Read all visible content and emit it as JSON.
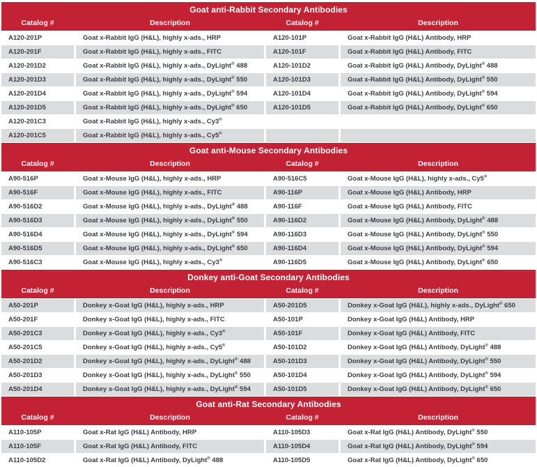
{
  "colors": {
    "header_red": "#C32235",
    "stripe_gray": "#DBDCDD",
    "cell_text": "#3D3E44",
    "header_text": "#FFFFFF"
  },
  "columns": [
    "Catalog #",
    "Description",
    "Catalog #",
    "Description"
  ],
  "sections": [
    {
      "title": "Goat anti-Rabbit Secondary Antibodies",
      "stripe_start": "white",
      "rows": [
        [
          "A120-201P",
          "Goat x-Rabbit IgG (H&L), highly x-ads., HRP",
          "A120-101P",
          "Goat x-Rabbit IgG (H&L) Antibody, HRP"
        ],
        [
          "A120-201F",
          "Goat x-Rabbit IgG (H&L), highly x-ads., FITC",
          "A120-101F",
          "Goat x-Rabbit IgG (H&L) Antibody, FITC"
        ],
        [
          "A120-201D2",
          "Goat x-Rabbit IgG (H&L), highly x-ads., DyLight® 488",
          "A120-101D2",
          "Goat x-Rabbit IgG (H&L) Antibody, DyLight® 488"
        ],
        [
          "A120-201D3",
          "Goat x-Rabbit IgG (H&L), highly x-ads., DyLight® 550",
          "A120-101D3",
          "Goat x-Rabbit IgG (H&L) Antibody, DyLight® 550"
        ],
        [
          "A120-201D4",
          "Goat x-Rabbit IgG (H&L), highly x-ads., DyLight® 594",
          "A120-101D4",
          "Goat x-Rabbit IgG (H&L) Antibody, DyLight® 594"
        ],
        [
          "A120-201D5",
          "Goat x-Rabbit IgG (H&L), highly x-ads., DyLight® 650",
          "A120-101D5",
          "Goat x-Rabbit IgG (H&L) Antibody, DyLight® 650"
        ],
        [
          "A120-201C3",
          "Goat x-Rabbit IgG (H&L), highly x-ads., Cy3®",
          "",
          ""
        ],
        [
          "A120-201C5",
          "Goat x-Rabbit IgG (H&L), highly x-ads., Cy5®",
          "",
          ""
        ]
      ]
    },
    {
      "title": "Goat anti-Mouse Secondary Antibodies",
      "stripe_start": "white",
      "rows": [
        [
          "A90-516P",
          "Goat x-Mouse IgG (H&L), highly x-ads., HRP",
          "A90-516C5",
          "Goat x-Mouse IgG (H&L), highly x-ads., Cy5®"
        ],
        [
          "A90-516F",
          "Goat x-Mouse IgG (H&L), highly x-ads., FITC",
          "A90-116P",
          "Goat x-Mouse IgG (H&L) Antibody, HRP"
        ],
        [
          "A90-516D2",
          "Goat x-Mouse IgG (H&L), highly x-ads., DyLight® 488",
          "A90-116F",
          "Goat x-Mouse IgG (H&L) Antibody, FITC"
        ],
        [
          "A90-516D3",
          "Goat x-Mouse IgG (H&L), highly x-ads., DyLight® 550",
          "A90-116D2",
          "Goat x-Mouse IgG (H&L) Antibody, DyLight® 488"
        ],
        [
          "A90-516D4",
          "Goat x-Mouse IgG (H&L), highly x-ads., DyLight® 594",
          "A90-116D3",
          "Goat x-Mouse IgG (H&L) Antibody, DyLight® 550"
        ],
        [
          "A90-516D5",
          "Goat x-Mouse IgG (H&L), highly x-ads., DyLight® 650",
          "A90-116D4",
          "Goat x-Mouse IgG (H&L) Antibody, DyLight® 594"
        ],
        [
          "A90-516C3",
          "Goat x-Mouse IgG (H&L), highly x-ads., Cy3®",
          "A90-116D5",
          "Goat x-Mouse IgG (H&L) Antibody, DyLight® 650"
        ]
      ]
    },
    {
      "title": "Donkey anti-Goat Secondary Antibodies",
      "stripe_start": "gray",
      "rows": [
        [
          "A50-201P",
          "Donkey x-Goat IgG (H&L), highly x-ads., HRP",
          "A50-201D5",
          "Donkey x-Goat IgG (H&L), highly x-ads., DyLight® 650"
        ],
        [
          "A50-201F",
          "Donkey x-Goat IgG (H&L), highly x-ads., FITC",
          "A50-101P",
          "Donkey x-Goat IgG (H&L) Antibody, HRP"
        ],
        [
          "A50-201C3",
          "Donkey x-Goat IgG (H&L), highly x-ads., Cy3®",
          "A50-101F",
          "Donkey x-Goat IgG (H&L) Antibody, FITC"
        ],
        [
          "A50-201C5",
          "Donkey x-Goat IgG (H&L), highly x-ads., Cy5®",
          "A50-101D2",
          "Donkey x-Goat IgG (H&L) Antibody, DyLight® 488"
        ],
        [
          "A50-201D2",
          "Donkey x-Goat IgG (H&L), highly x-ads., DyLight® 488",
          "A50-101D3",
          "Donkey x-Goat IgG (H&L) Antibody, DyLight® 550"
        ],
        [
          "A50-201D3",
          "Donkey x-Goat IgG (H&L), highly x-ads., DyLight® 550",
          "A50-101D4",
          "Donkey x-Goat IgG (H&L) Antibody, DyLight® 594"
        ],
        [
          "A50-201D4",
          "Donkey x-Goat IgG (H&L), highly x-ads., DyLight® 594",
          "A50-101D5",
          "Donkey x-Goat IgG (H&L) Antibody, DyLight® 650"
        ]
      ]
    },
    {
      "title": "Goat anti-Rat Secondary Antibodies",
      "stripe_start": "white",
      "rows": [
        [
          "A110-105P",
          "Goat x-Rat IgG (H&L) Antibody, HRP",
          "A110-105D3",
          "Goat x-Rat IgG (H&L) Antibody, DyLight® 550"
        ],
        [
          "A110-105F",
          "Goat x-Rat IgG (H&L) Antibody, FITC",
          "A110-105D4",
          "Goat x-Rat IgG (H&L) Antibody, DyLight® 594"
        ],
        [
          "A110-105D2",
          "Goat x-Rat IgG (H&L) Antibody, DyLight® 488",
          "A110-105D5",
          "Goat x-Rat IgG (H&L) Antibody, DyLight® 650"
        ]
      ]
    }
  ]
}
